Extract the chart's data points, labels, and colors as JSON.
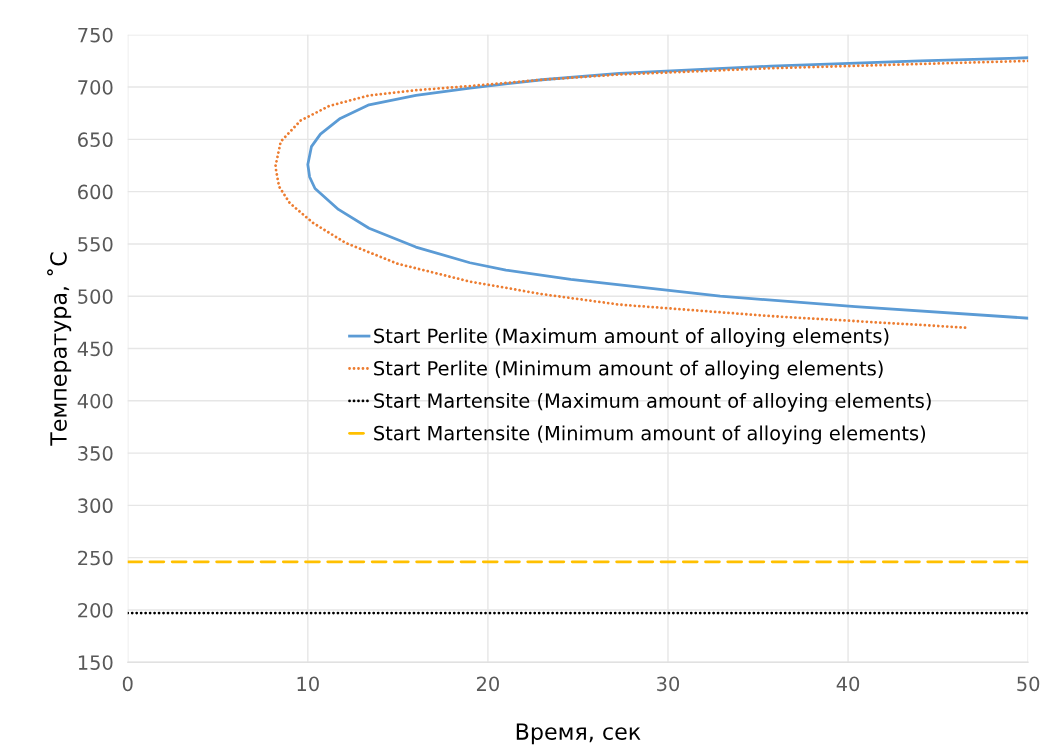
{
  "chart_data": {
    "type": "line",
    "xlabel": "Время, сек",
    "ylabel": "Температура, ˚C",
    "xlim": [
      0,
      50
    ],
    "xticks": [
      0,
      10,
      20,
      30,
      40,
      50
    ],
    "ylim": [
      150,
      750
    ],
    "yticks": [
      150,
      200,
      250,
      300,
      350,
      400,
      450,
      500,
      550,
      600,
      650,
      700,
      750
    ],
    "grid": true,
    "legend": "center",
    "marker": "none",
    "series": [
      {
        "name": "Start Perlite (Maximum amount of alloying elements)",
        "color": "#5b9bd5",
        "line_style": "solid",
        "x": [
          50,
          44,
          35.7,
          27.3,
          23,
          19,
          16,
          13.4,
          11.8,
          10.7,
          10.2,
          10,
          10.1,
          10.4,
          11.7,
          13.4,
          16,
          19,
          21,
          24.6,
          32.9,
          40.4,
          50
        ],
        "values": [
          728,
          725,
          720,
          713,
          707,
          699,
          692,
          683,
          670,
          655,
          643,
          626,
          614,
          603,
          583,
          565,
          547,
          532,
          525,
          516,
          500,
          490,
          479
        ]
      },
      {
        "name": "Start Perlite (Minimum amount of alloying elements)",
        "color": "#ed7d31",
        "line_style": "dotted",
        "x": [
          50,
          35.7,
          27.3,
          23,
          19,
          16,
          13.4,
          11.2,
          9.6,
          8.5,
          8.2,
          8.4,
          9,
          10.3,
          12.1,
          15,
          19,
          23,
          27.3,
          35.7,
          46.5
        ],
        "values": [
          725,
          718,
          712,
          707,
          701,
          697,
          692,
          682,
          668,
          648,
          624,
          605,
          589,
          570,
          551,
          531,
          514,
          502,
          492,
          481,
          470
        ]
      },
      {
        "name": "Start Martensite (Maximum amount of alloying elements)",
        "color": "#000000",
        "line_style": "dotted",
        "x": [
          0,
          50
        ],
        "values": [
          197,
          197
        ]
      },
      {
        "name": "Start Martensite (Minimum amount of alloying elements)",
        "color": "#ffc000",
        "line_style": "dashed",
        "x": [
          0,
          50
        ],
        "values": [
          246,
          246
        ]
      }
    ]
  }
}
